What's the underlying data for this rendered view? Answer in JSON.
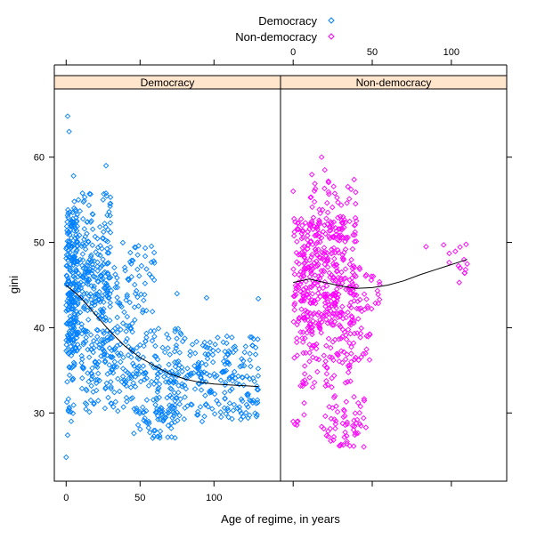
{
  "chart_data": {
    "type": "scatter",
    "title": "",
    "xlabel": "Age of regime, in years",
    "ylabel": "gini",
    "ylim": [
      22,
      68
    ],
    "yticks": [
      30,
      40,
      50,
      60
    ],
    "legend": {
      "placement": "top-center",
      "entries": [
        {
          "label": "Democracy",
          "color": "#0080ff",
          "symbol": "diamond"
        },
        {
          "label": "Non-democracy",
          "color": "#ff00ff",
          "symbol": "diamond"
        }
      ]
    },
    "strip_color": "#ffe5cc",
    "panels": [
      {
        "name": "Democracy",
        "color": "#0080ff",
        "xlim": [
          -8,
          145
        ],
        "xticks": [
          0,
          50,
          100
        ],
        "xticks_side": "bottom",
        "loess": [
          [
            0,
            45.0
          ],
          [
            10,
            43.5
          ],
          [
            20,
            41.5
          ],
          [
            30,
            39.5
          ],
          [
            40,
            37.8
          ],
          [
            50,
            36.5
          ],
          [
            60,
            35.5
          ],
          [
            70,
            34.6
          ],
          [
            80,
            34.0
          ],
          [
            90,
            33.6
          ],
          [
            100,
            33.4
          ],
          [
            110,
            33.3
          ],
          [
            120,
            33.2
          ],
          [
            130,
            33.1
          ]
        ],
        "clusters": [
          {
            "x": [
              0,
              8
            ],
            "y": [
              37,
              54
            ],
            "n": 170
          },
          {
            "x": [
              0,
              30
            ],
            "y": [
              42,
              52
            ],
            "n": 160
          },
          {
            "x": [
              0,
              6
            ],
            "y": [
              29,
              44
            ],
            "n": 40
          },
          {
            "x": [
              5,
              35
            ],
            "y": [
              35,
              48
            ],
            "n": 110
          },
          {
            "x": [
              10,
              45
            ],
            "y": [
              30,
              40
            ],
            "n": 120
          },
          {
            "x": [
              20,
              60
            ],
            "y": [
              40,
              50
            ],
            "n": 70
          },
          {
            "x": [
              40,
              80
            ],
            "y": [
              33,
              40
            ],
            "n": 90
          },
          {
            "x": [
              45,
              75
            ],
            "y": [
              27,
              32
            ],
            "n": 60
          },
          {
            "x": [
              60,
              130
            ],
            "y": [
              29,
              36
            ],
            "n": 170
          },
          {
            "x": [
              80,
              130
            ],
            "y": [
              34,
              39
            ],
            "n": 80
          },
          {
            "x": [
              5,
              30
            ],
            "y": [
              52,
              56
            ],
            "n": 30
          }
        ],
        "points": [
          [
            1,
            64.8
          ],
          [
            2,
            63
          ],
          [
            27,
            59
          ],
          [
            5,
            57.8
          ],
          [
            0,
            24.8
          ],
          [
            1,
            27.4
          ],
          [
            130,
            43.4
          ],
          [
            95,
            43.5
          ],
          [
            75,
            44
          ],
          [
            49,
            49.6
          ],
          [
            47,
            49.4
          ],
          [
            25,
            55
          ],
          [
            30,
            55.3
          ]
        ]
      },
      {
        "name": "Non-democracy",
        "color": "#ff00ff",
        "xlim": [
          -8,
          135
        ],
        "xticks": [
          0,
          50,
          100
        ],
        "xticks_side": "top",
        "loess": [
          [
            0,
            45.3
          ],
          [
            10,
            45.7
          ],
          [
            20,
            45.3
          ],
          [
            30,
            44.9
          ],
          [
            40,
            44.6
          ],
          [
            50,
            44.7
          ],
          [
            60,
            45.0
          ],
          [
            70,
            45.5
          ],
          [
            80,
            46.2
          ],
          [
            90,
            46.8
          ],
          [
            100,
            47.4
          ],
          [
            110,
            48.0
          ]
        ],
        "clusters": [
          {
            "x": [
              0,
              40
            ],
            "y": [
              40,
              53
            ],
            "n": 300
          },
          {
            "x": [
              0,
              50
            ],
            "y": [
              36,
              48
            ],
            "n": 130
          },
          {
            "x": [
              5,
              40
            ],
            "y": [
              33,
              41
            ],
            "n": 60
          },
          {
            "x": [
              10,
              40
            ],
            "y": [
              50,
              58
            ],
            "n": 60
          },
          {
            "x": [
              18,
              45
            ],
            "y": [
              26,
              32
            ],
            "n": 60
          },
          {
            "x": [
              0,
              8
            ],
            "y": [
              28,
              34
            ],
            "n": 10
          },
          {
            "x": [
              35,
              55
            ],
            "y": [
              42,
              47
            ],
            "n": 25
          },
          {
            "x": [
              95,
              110
            ],
            "y": [
              46,
              50
            ],
            "n": 14
          }
        ],
        "points": [
          [
            0,
            56
          ],
          [
            18,
            60
          ],
          [
            20,
            58.5
          ],
          [
            84,
            49.5
          ],
          [
            105,
            45.3
          ],
          [
            0,
            29
          ],
          [
            40,
            28.8
          ],
          [
            46,
            28.3
          ],
          [
            34,
            26.4
          ]
        ]
      }
    ]
  }
}
